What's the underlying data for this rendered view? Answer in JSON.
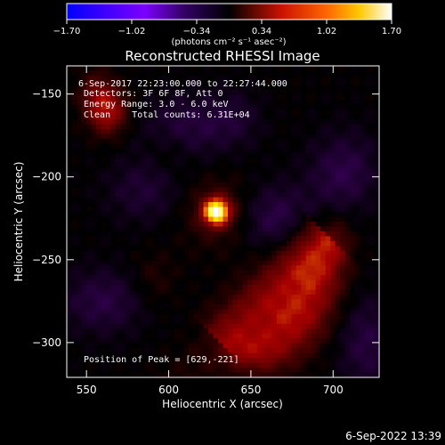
{
  "chart_data": {
    "type": "heatmap",
    "title": "Reconstructed RHESSI Image",
    "xlabel": "Heliocentric X (arcsec)",
    "ylabel": "Heliocentric Y (arcsec)",
    "xlim": [
      538,
      728
    ],
    "ylim": [
      -321,
      -133
    ],
    "x_ticks": [
      {
        "value": 550,
        "label": "550"
      },
      {
        "value": 600,
        "label": "600"
      },
      {
        "value": 650,
        "label": "650"
      },
      {
        "value": 700,
        "label": "700"
      }
    ],
    "y_ticks": [
      {
        "value": -150,
        "label": "−150"
      },
      {
        "value": -200,
        "label": "−200"
      },
      {
        "value": -250,
        "label": "−250"
      },
      {
        "value": -300,
        "label": "−300"
      }
    ],
    "colorbar": {
      "min": -1.7,
      "max": 1.7,
      "ticks": [
        {
          "value": -1.7,
          "label": "−1.70"
        },
        {
          "value": -1.02,
          "label": "−1.02"
        },
        {
          "value": -0.34,
          "label": "−0.34"
        },
        {
          "value": 0.34,
          "label": "0.34"
        },
        {
          "value": 1.02,
          "label": "1.02"
        },
        {
          "value": 1.7,
          "label": "1.70"
        }
      ],
      "units": "(photons cm⁻² s⁻¹ asec⁻²)"
    },
    "annotations": [
      "6-Sep-2017 22:23:00.000 to 22:27:44.000",
      "Detectors: 3F 6F 8F, Att 0",
      "Energy Range: 3.0 - 6.0 keV",
      "Clean    Total counts: 6.31E+04",
      "Position of Peak = [629,-221]"
    ],
    "sources": [
      {
        "x": 629,
        "y": -221,
        "peak": 1.7,
        "description": "compact bright peak"
      },
      {
        "x": 563,
        "y": -160,
        "peak": 0.8,
        "description": "upper-left source"
      }
    ]
  },
  "footer": {
    "timestamp": "6-Sep-2022 13:39"
  },
  "colors": {
    "background": "#000000",
    "text": "#ffffff"
  }
}
